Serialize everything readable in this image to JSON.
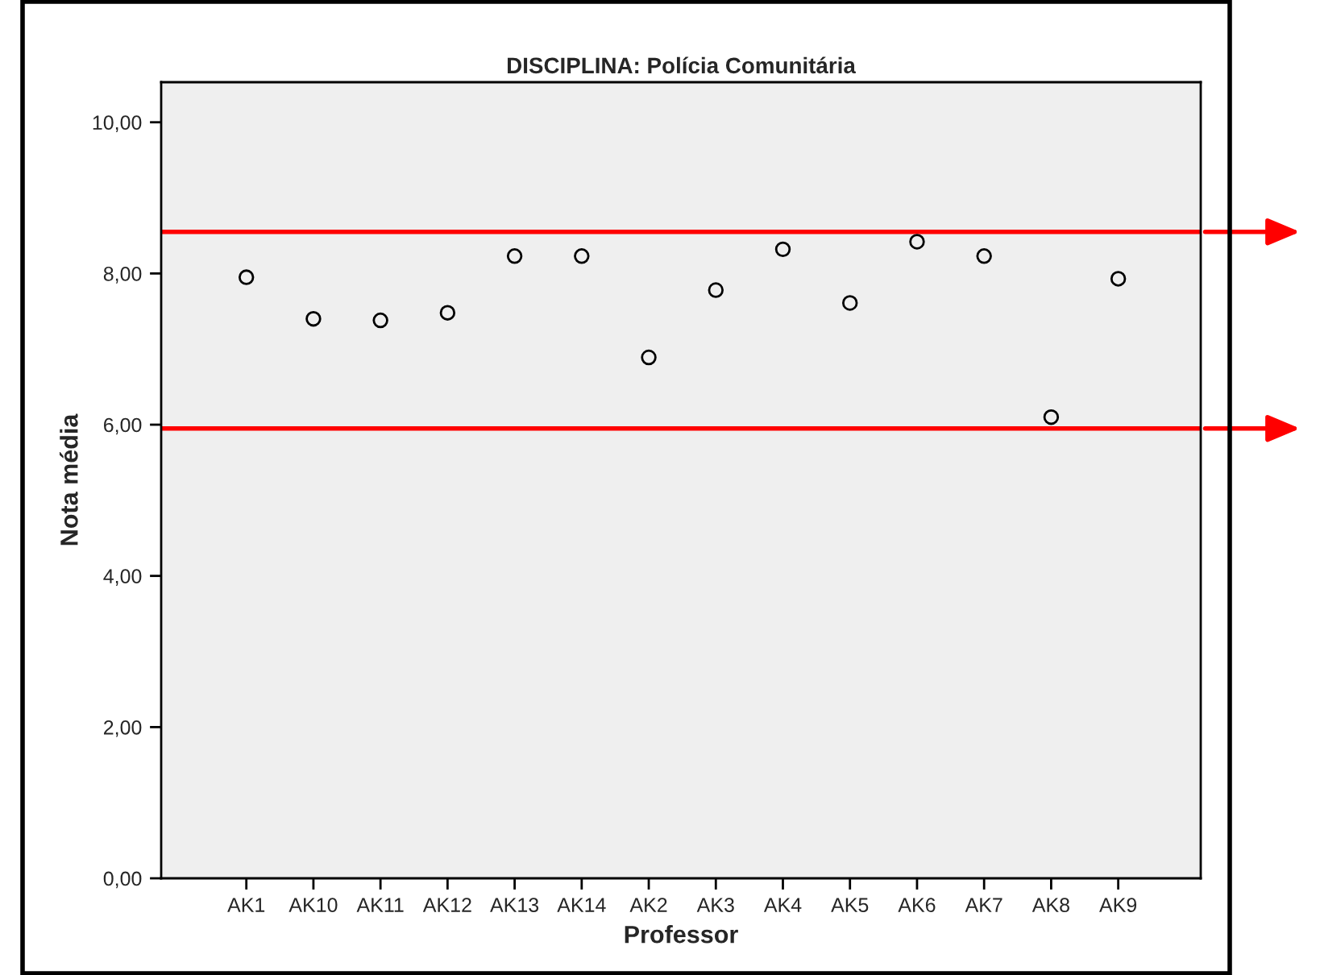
{
  "chart_data": {
    "type": "scatter",
    "title": "DISCIPLINA: Polícia Comunitária",
    "xlabel": "Professor",
    "ylabel": "Nota média",
    "categories": [
      "AK1",
      "AK10",
      "AK11",
      "AK12",
      "AK13",
      "AK14",
      "AK2",
      "AK3",
      "AK4",
      "AK5",
      "AK6",
      "AK7",
      "AK8",
      "AK9"
    ],
    "series": [
      {
        "color": "#000000",
        "values": [
          7.95,
          7.4,
          7.38,
          7.48,
          8.23,
          8.23,
          6.89,
          7.78,
          8.32,
          7.61,
          8.42,
          8.23,
          6.1,
          7.93
        ]
      }
    ],
    "marker": "circle",
    "ylim": [
      0,
      10.53
    ],
    "yticks": [
      {
        "value": 0,
        "label": "0,00"
      },
      {
        "value": 2,
        "label": "2,00"
      },
      {
        "value": 4,
        "label": "4,00"
      },
      {
        "value": 6,
        "label": "6,00"
      },
      {
        "value": 8,
        "label": "8,00"
      },
      {
        "value": 10,
        "label": "10,00"
      }
    ],
    "ref_lines": [
      {
        "axis": "y",
        "value": 8.55,
        "color": "#ff0000"
      },
      {
        "axis": "y",
        "value": 5.95,
        "color": "#ff0000"
      }
    ],
    "grid": false,
    "legend": false
  }
}
